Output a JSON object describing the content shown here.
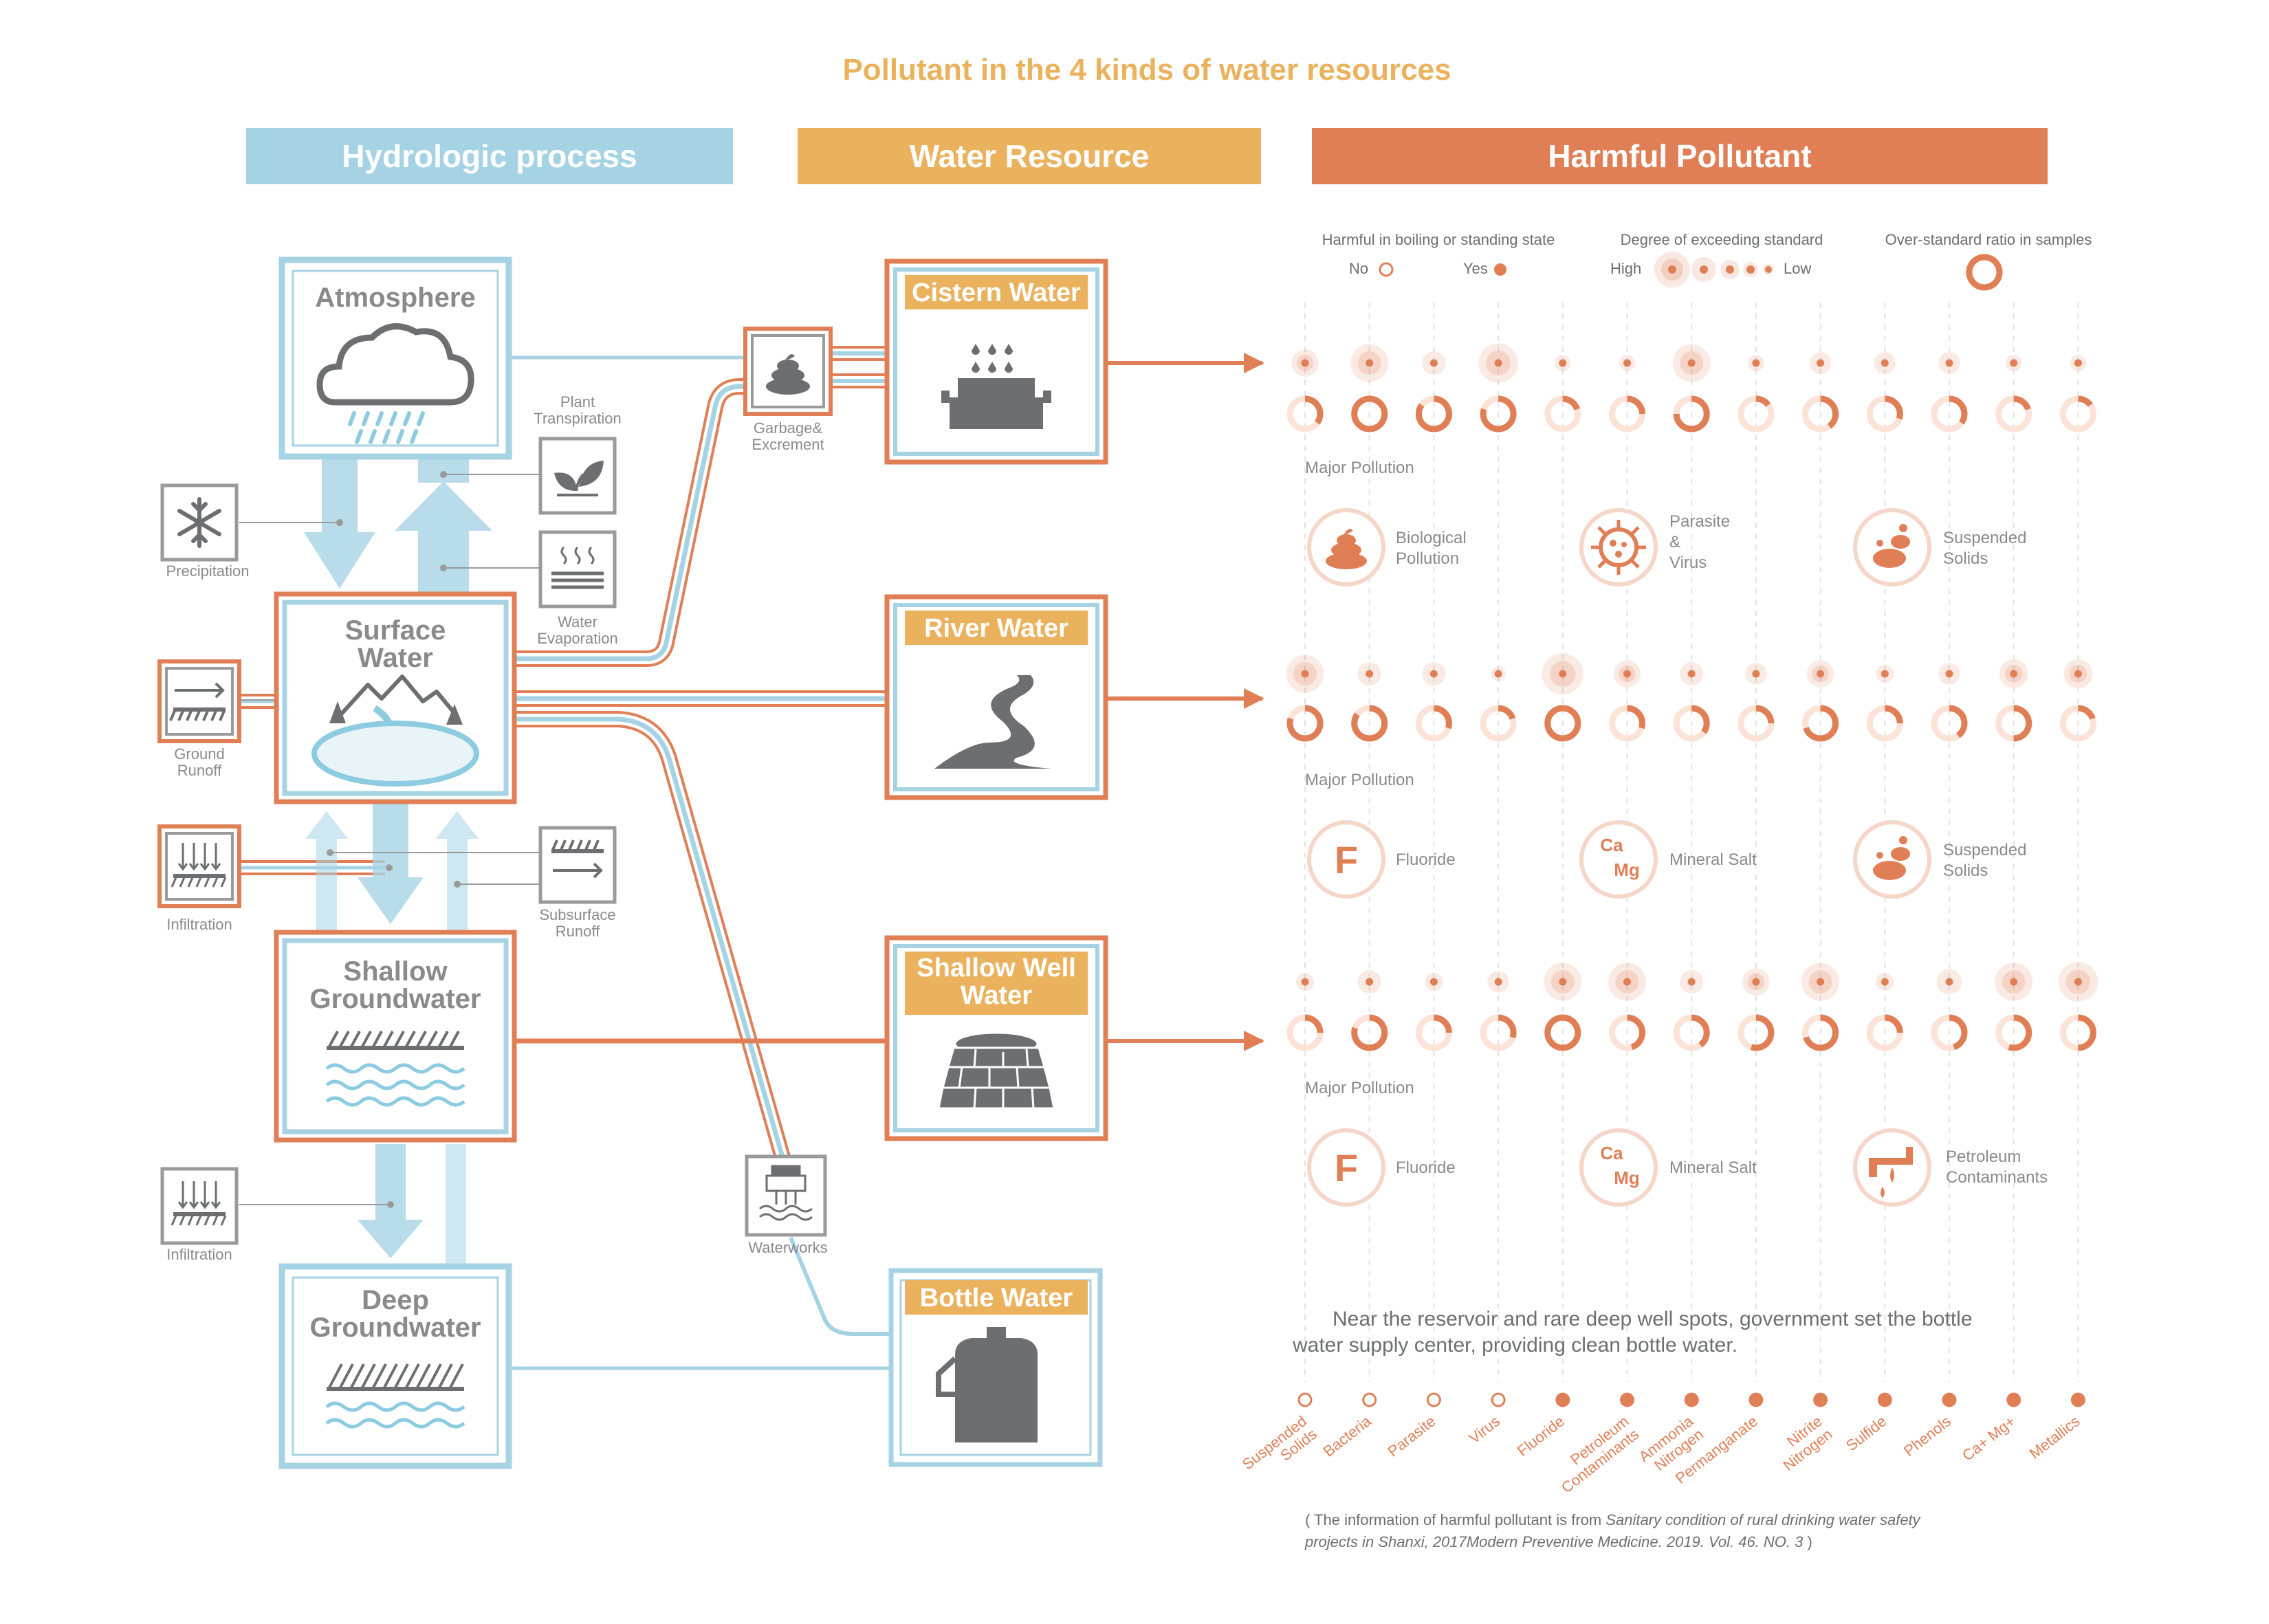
{
  "title": "Pollutant in the 4 kinds of water resources",
  "headers": {
    "hydrologic": "Hydrologic process",
    "resource": "Water Resource",
    "pollutant": "Harmful Pollutant"
  },
  "colors": {
    "blue": "#a6d3e3",
    "blue_dark": "#8ccbe0",
    "orange": "#e07f56",
    "amber": "#ebb25e",
    "gray": "#6d6e71",
    "text_gray": "#8a8a8a"
  },
  "hydro": {
    "atmosphere": "Atmosphere",
    "surface_water": [
      "Surface",
      "Water"
    ],
    "shallow_groundwater": [
      "Shallow",
      "Groundwater"
    ],
    "deep_groundwater": [
      "Deep",
      "Groundwater"
    ],
    "precipitation": "Precipitation",
    "plant_transpiration": [
      "Plant",
      "Transpiration"
    ],
    "water_evaporation": [
      "Water",
      "Evaporation"
    ],
    "ground_runoff": [
      "Ground",
      "Runoff"
    ],
    "infiltration": "Infiltration",
    "subsurface_runoff": [
      "Subsurface",
      "Runoff"
    ],
    "infiltration2": "Infiltration",
    "garbage": [
      "Garbage&",
      "Excrement"
    ],
    "waterworks": "Waterworks"
  },
  "resources": {
    "cistern": "Cistern Water",
    "river": "River  Water",
    "shallow_well": [
      "Shallow Well",
      "Water"
    ],
    "bottle": "Bottle Water"
  },
  "legend": {
    "harmful_label": "Harmful in boiling or standing state",
    "no": "No",
    "yes": "Yes",
    "degree_label": "Degree of exceeding standard",
    "high": "High",
    "low": "Low",
    "ratio_label": "Over-standard ratio in samples"
  },
  "major_pollution_label": "Major Pollution",
  "pollutants": [
    "Suspended Solids",
    "Bacteria",
    "Parasite",
    "Virus",
    "Fluoride",
    "Petroleum Contaminants",
    "Ammonia Nitrogen",
    "Permanganate",
    "Nitrite Nitrogen",
    "Sulfide",
    "Phenols",
    "Ca+ Mg+",
    "Metallics"
  ],
  "pollutant_label_lines": [
    [
      "Suspended",
      "Solids"
    ],
    [
      "Bacteria"
    ],
    [
      "Parasite"
    ],
    [
      "Virus"
    ],
    [
      "Fluoride"
    ],
    [
      "Petroleum",
      "Contaminants"
    ],
    [
      "Ammonia",
      "Nitrogen"
    ],
    [
      "Permanganate"
    ],
    [
      "Nitrite",
      "Nitrogen"
    ],
    [
      "Sulfide"
    ],
    [
      "Phenols"
    ],
    [
      "Ca+  Mg+"
    ],
    [
      "Metallics"
    ]
  ],
  "harmful_boiling": [
    false,
    false,
    false,
    false,
    true,
    true,
    true,
    true,
    true,
    true,
    true,
    true,
    true
  ],
  "chart_data": {
    "type": "dot-matrix",
    "scales": {
      "degree": "0 (low) – 1 (high), shown by halo size",
      "ratio": "fraction of samples over standard, shown by ring fill"
    },
    "rows": [
      {
        "resource": "Cistern Water",
        "degree": [
          0.45,
          0.75,
          0.35,
          0.8,
          0.15,
          0.15,
          0.75,
          0.15,
          0.3,
          0.3,
          0.3,
          0.15,
          0.15
        ],
        "ratio": [
          0.35,
          1.0,
          0.85,
          0.8,
          0.2,
          0.25,
          0.75,
          0.15,
          0.4,
          0.3,
          0.35,
          0.2,
          0.15
        ]
      },
      {
        "resource": "River  Water",
        "degree": [
          0.75,
          0.35,
          0.35,
          0.1,
          0.85,
          0.45,
          0.35,
          0.3,
          0.45,
          0.2,
          0.3,
          0.5,
          0.5
        ],
        "ratio": [
          0.8,
          0.85,
          0.3,
          0.2,
          1.0,
          0.3,
          0.35,
          0.25,
          0.7,
          0.25,
          0.4,
          0.5,
          0.2
        ]
      },
      {
        "resource": "Shallow Well Water",
        "degree": [
          0.2,
          0.35,
          0.2,
          0.3,
          0.75,
          0.75,
          0.35,
          0.45,
          0.75,
          0.2,
          0.4,
          0.75,
          0.8
        ],
        "ratio": [
          0.25,
          0.8,
          0.25,
          0.3,
          1.0,
          0.45,
          0.4,
          0.55,
          0.7,
          0.25,
          0.45,
          0.55,
          0.5
        ]
      }
    ]
  },
  "major": {
    "row1": [
      [
        "Biological",
        "Pollution"
      ],
      [
        "Parasite",
        "&",
        "Virus"
      ],
      [
        "Suspended",
        "Solids"
      ]
    ],
    "row2": [
      [
        "Fluoride"
      ],
      [
        "Mineral Salt"
      ],
      [
        "Suspended",
        "Solids"
      ]
    ],
    "row3": [
      [
        "Fluoride"
      ],
      [
        "Mineral Salt"
      ],
      [
        "Petroleum",
        "Contaminants"
      ]
    ]
  },
  "icon_text": {
    "f": "F",
    "ca": "Ca",
    "mg": "Mg"
  },
  "icons": {
    "atmosphere": "cloud-rain-icon",
    "surface": "mountain-lake-icon",
    "shallow": "ground-water-icon",
    "deep": "ground-water-icon",
    "precipitation": "snowflake-icon",
    "plant": "leaf-icon",
    "evaporation": "steam-icon",
    "ground_runoff": "runoff-arrow-icon",
    "infiltration": "infiltration-arrows-icon",
    "subsurface": "runoff-arrow-icon",
    "garbage": "excrement-icon",
    "waterworks": "waterworks-icon",
    "cistern": "cistern-icon",
    "river": "river-icon",
    "well": "well-icon",
    "bottle": "bottle-icon"
  },
  "note": [
    "Near the  reservoir and rare deep well spots, government set the bottle",
    "water supply center, providing clean bottle water."
  ],
  "citation": {
    "line1_a": "( The information of harmful pollutant is from ",
    "line1_b": "Sanitary condition of rural drinking water safety",
    "line2_a": "projects in Shanxi, 2017",
    "line2_b": "Modern Preventive Medicine. 2019. Vol. 46. NO. 3",
    "line2_c": " )"
  }
}
